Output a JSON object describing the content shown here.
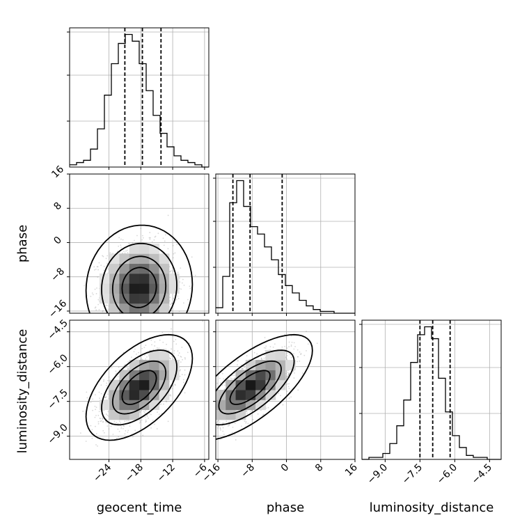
{
  "chart_data": {
    "type": "corner",
    "parameters": [
      "geocent_time",
      "phase",
      "luminosity_distance"
    ],
    "labels": {
      "geocent_time": "geocent_time",
      "phase": "phase",
      "luminosity_distance": "luminosity_distance"
    },
    "ranges": {
      "geocent_time": [
        -31.4,
        -5.2
      ],
      "phase": [
        -16.5,
        16
      ],
      "luminosity_distance": [
        -10.0,
        -4.0
      ]
    },
    "ticks": {
      "geocent_time": [
        "−24",
        "−18",
        "−12",
        "−6"
      ],
      "phase": [
        "−16",
        "−8",
        "0",
        "8",
        "16"
      ],
      "luminosity_distance": [
        "−9.0",
        "−7.5",
        "−6.0",
        "−4.5"
      ]
    },
    "quantiles": {
      "geocent_time": [
        -21.0,
        -17.7,
        -14.2
      ],
      "phase": [
        -12.5,
        -8.5,
        -1.0
      ],
      "luminosity_distance": [
        -7.5,
        -6.95,
        -6.2
      ]
    },
    "histograms": {
      "geocent_time": {
        "edges_start": -31.4,
        "bin_width": 1.31,
        "counts": [
          1,
          2,
          3,
          8,
          17,
          32,
          46,
          55,
          59,
          56,
          46,
          34,
          23,
          15,
          9,
          5,
          3,
          2,
          1,
          0
        ]
      },
      "phase": {
        "edges_start": -16.5,
        "bin_width": 1.625,
        "counts": [
          3,
          20,
          60,
          72,
          58,
          47,
          43,
          36,
          29,
          21,
          15,
          11,
          7,
          4,
          2,
          1,
          1,
          0,
          0,
          0
        ]
      },
      "luminosity_distance": {
        "edges_start": -10.0,
        "bin_width": 0.3,
        "counts": [
          0,
          1,
          1,
          3,
          8,
          17,
          30,
          49,
          63,
          67,
          61,
          41,
          24,
          12,
          6,
          2,
          1,
          1,
          0,
          0
        ]
      }
    },
    "scatter": {
      "geocent_time_vs_phase": {
        "mean": [
          -18.3,
          -10.5
        ],
        "sd": [
          3.3,
          4.8
        ],
        "rho": 0.05
      },
      "geocent_time_vs_luminosity_distance": {
        "mean": [
          -18.3,
          -6.9
        ],
        "sd": [
          3.3,
          0.75
        ],
        "rho": 0.55
      },
      "phase_vs_luminosity_distance": {
        "mean": [
          -8.5,
          -6.9
        ],
        "sd": [
          4.8,
          0.75
        ],
        "rho": 0.7
      }
    },
    "grid": true,
    "line_color": "#000000",
    "point_color": "#8c8c8c"
  }
}
